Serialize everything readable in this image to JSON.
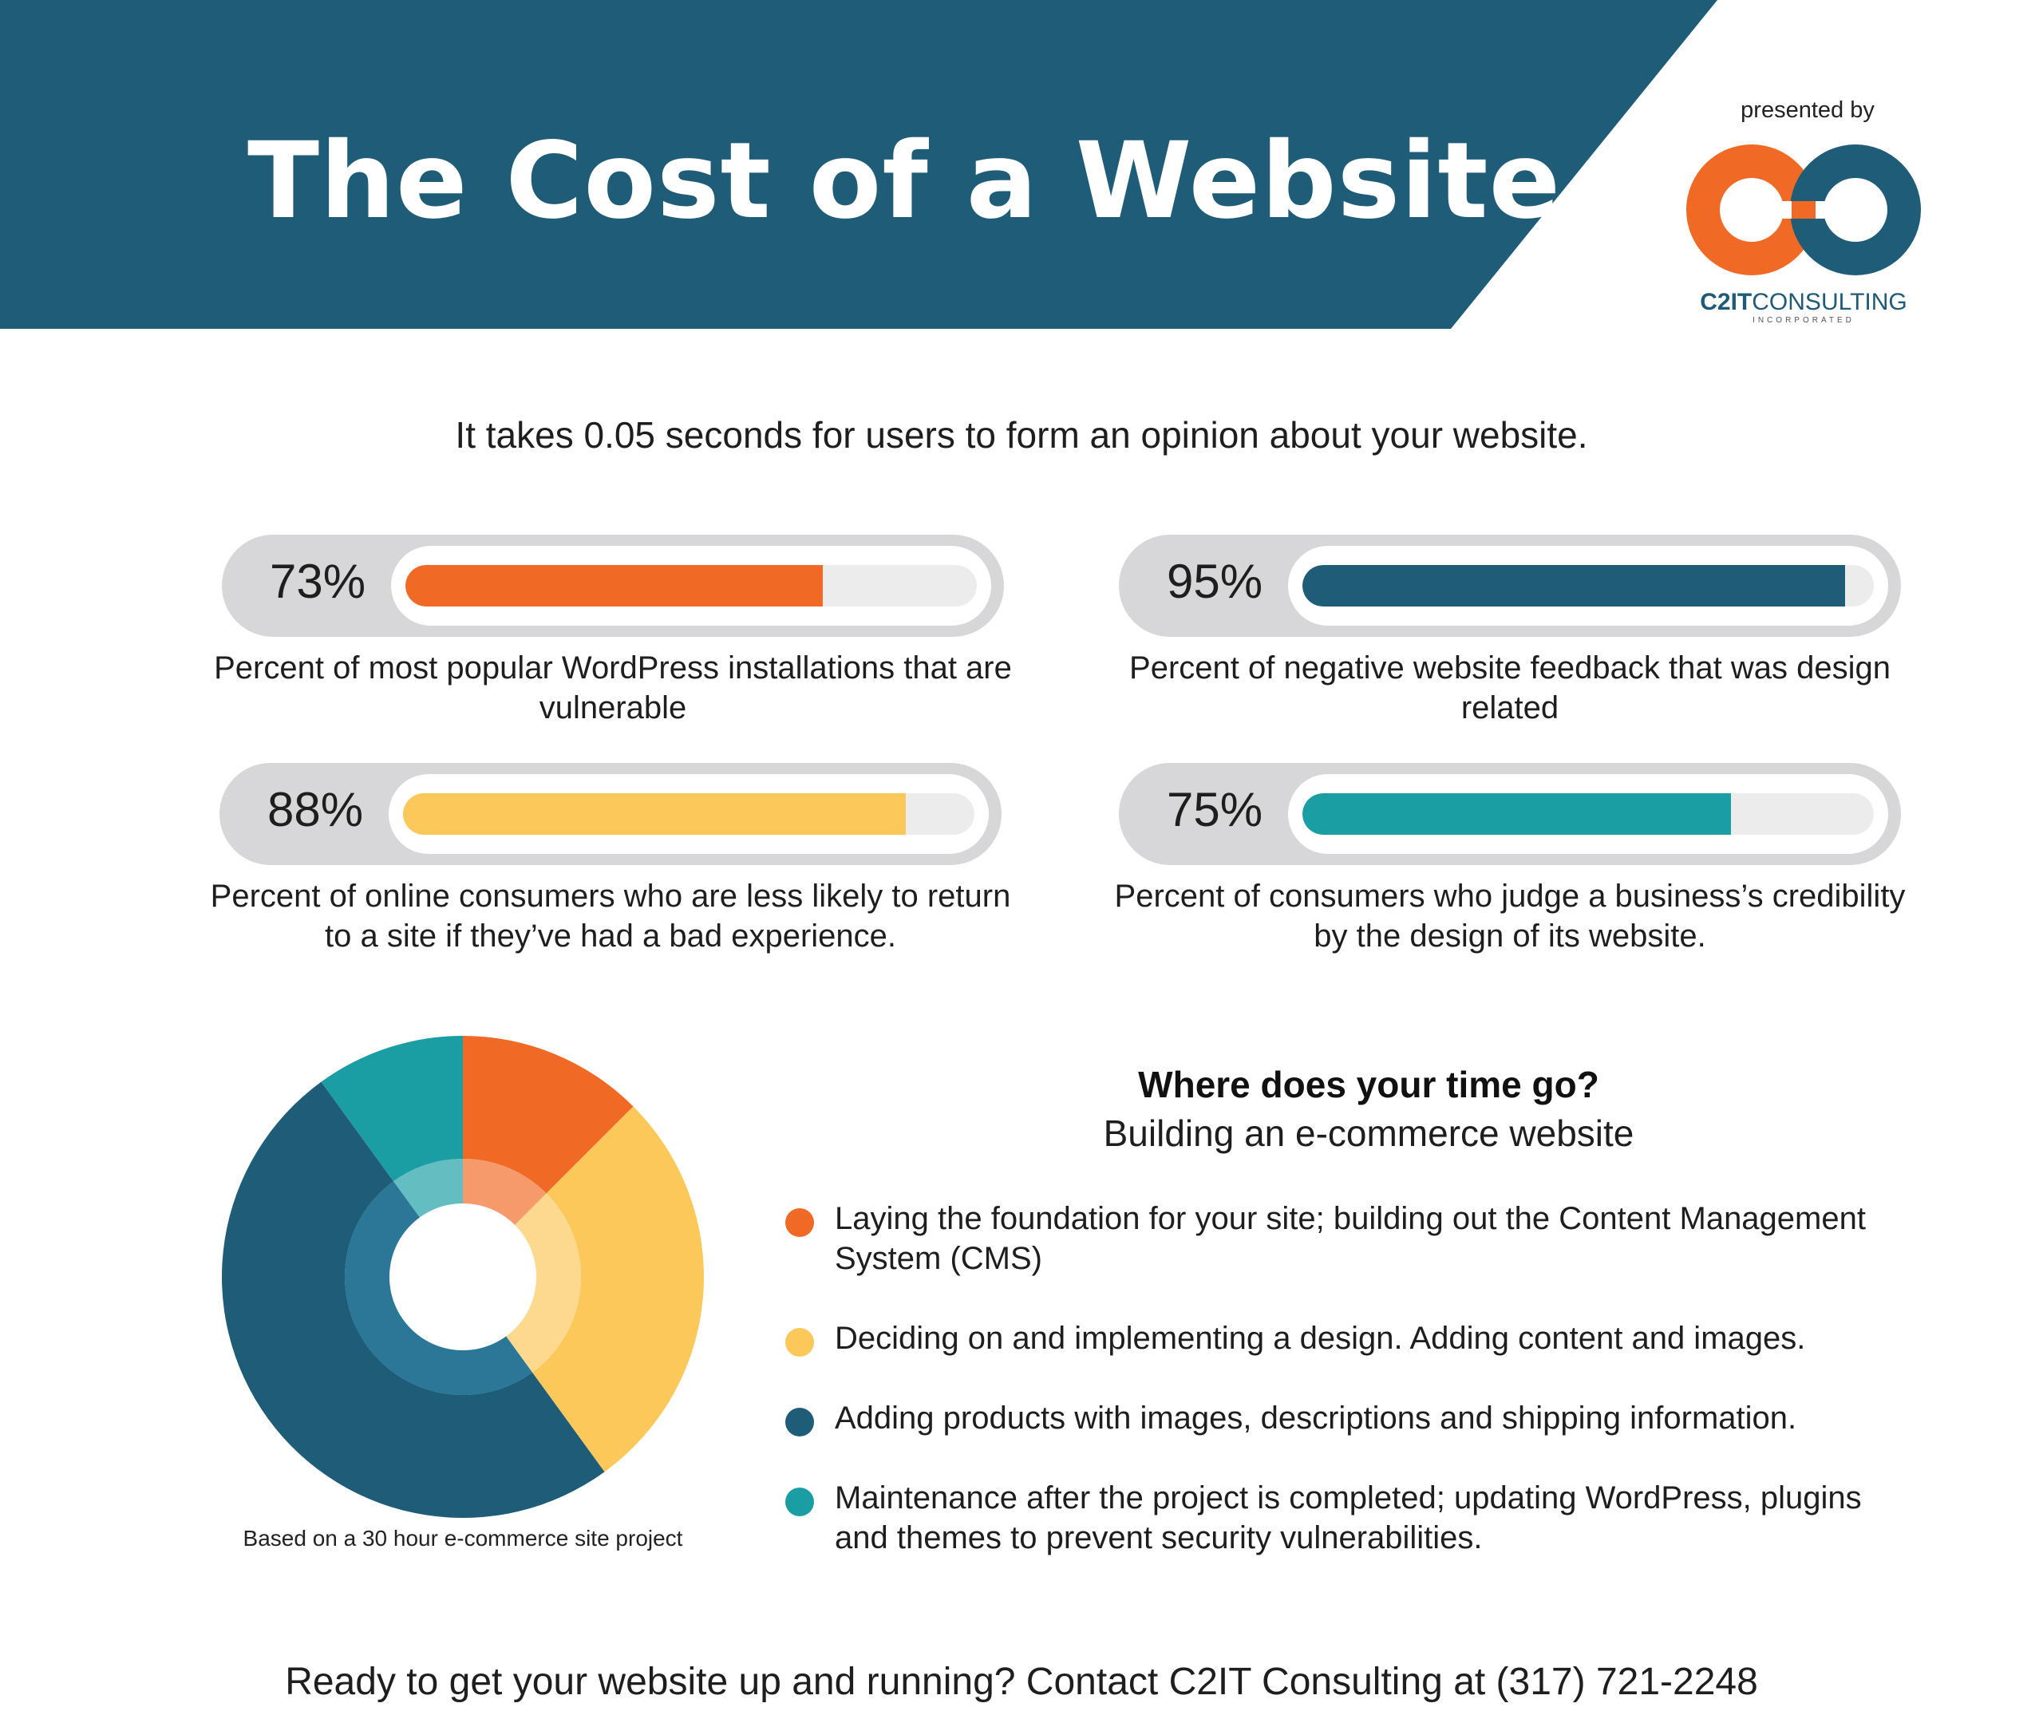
{
  "header": {
    "title": "The Cost of a Website",
    "banner_color": "#1f5c77"
  },
  "brand": {
    "presented_by": "presented by",
    "logo_name_bold": "C2IT",
    "logo_name_rest": "CONSULTING",
    "logo_sub": "INCORPORATED",
    "logo_icon": "c2it-infinity-logo",
    "colors": {
      "orange": "#f06a25",
      "blue": "#1f5c77"
    }
  },
  "intro": "It takes 0.05 seconds for users to form an opinion about your website.",
  "stats": [
    {
      "value": "73%",
      "fraction": 0.73,
      "color": "#f06a25",
      "description": "Percent of most popular WordPress installations that are vulnerable"
    },
    {
      "value": "95%",
      "fraction": 0.95,
      "color": "#1f5c77",
      "description": "Percent of negative website feedback that was design related"
    },
    {
      "value": "88%",
      "fraction": 0.88,
      "color": "#fcc85a",
      "description": "Percent of online consumers who are less likely to return to a site if they’ve had a bad experience."
    },
    {
      "value": "75%",
      "fraction": 0.75,
      "color": "#1b9ea3",
      "description": "Percent of consumers who judge a business’s credibility by the design of its website."
    }
  ],
  "chart_data": {
    "type": "pie",
    "title": "Where does your time go?",
    "subtitle": "Building an e-commerce website",
    "note": "Based on a 30 hour e-commerce site project",
    "series": [
      {
        "label": "Laying the foundation for your site; building out the Content Management System (CMS)",
        "value": 12.5,
        "color": "#f06a25"
      },
      {
        "label": "Deciding on and implementing a design. Adding content and images.",
        "value": 27.5,
        "color": "#fcc85a"
      },
      {
        "label": "Adding products with images, descriptions and shipping information.",
        "value": 50,
        "color": "#1f5c77"
      },
      {
        "label": "Maintenance after the project is completed; updating WordPress, plugins and themes to prevent security vulnerabilities.",
        "value": 10,
        "color": "#1b9ea3"
      }
    ]
  },
  "footer": "Ready to get your website up and running?  Contact C2IT Consulting at (317) 721-2248"
}
